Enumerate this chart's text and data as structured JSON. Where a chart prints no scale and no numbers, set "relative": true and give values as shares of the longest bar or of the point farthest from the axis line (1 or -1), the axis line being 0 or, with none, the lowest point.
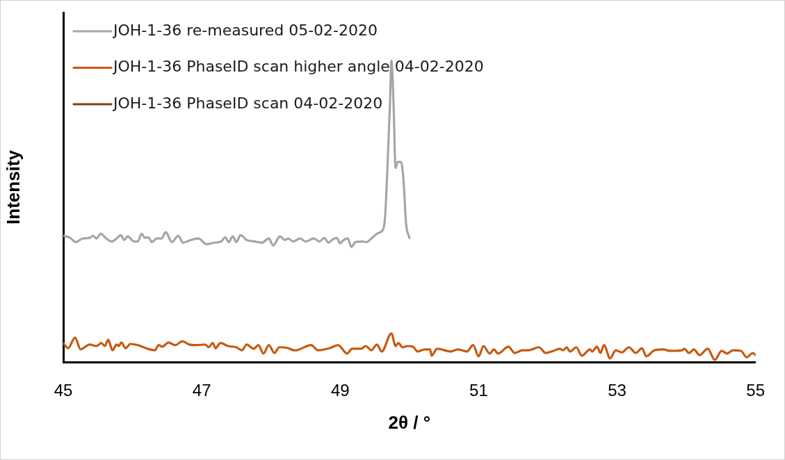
{
  "chart_data": {
    "type": "line",
    "relative": true,
    "xlabel": "2θ / °",
    "ylabel": "Intensity",
    "xlim": [
      45,
      55
    ],
    "xticks": [
      45,
      47,
      49,
      51,
      53,
      55
    ],
    "legend": "top left",
    "marker": "none",
    "line_style": "solid",
    "grid": false,
    "series": [
      {
        "name": "JOH-1-36 re-measured 05-02-2020",
        "color": "#a5a5a5",
        "x": [
          45,
          45.1,
          45.18,
          45.28,
          45.38,
          45.43,
          45.48,
          45.54,
          45.62,
          45.7,
          45.77,
          45.83,
          45.88,
          45.93,
          46.02,
          46.08,
          46.13,
          46.18,
          46.23,
          46.28,
          46.35,
          46.42,
          46.48,
          46.57,
          46.66,
          46.73,
          46.82,
          46.95,
          47.07,
          47.18,
          47.28,
          47.34,
          47.39,
          47.45,
          47.5,
          47.56,
          47.65,
          47.77,
          47.87,
          47.97,
          48.03,
          48.13,
          48.2,
          48.25,
          48.32,
          48.42,
          48.5,
          48.62,
          48.7,
          48.77,
          48.83,
          48.88,
          48.95,
          49,
          49.04,
          49.11,
          49.16,
          49.22,
          49.32,
          49.38,
          49.45,
          49.55,
          49.62,
          49.65,
          49.68,
          49.72,
          49.74,
          49.77,
          49.8,
          49.83,
          49.88,
          49.92,
          49.95,
          50
        ],
        "values": [
          0.419,
          0.412,
          0.398,
          0.41,
          0.412,
          0.419,
          0.41,
          0.426,
          0.41,
          0.4,
          0.41,
          0.421,
          0.405,
          0.417,
          0.4,
          0.4,
          0.426,
          0.412,
          0.414,
          0.398,
          0.41,
          0.41,
          0.431,
          0.398,
          0.419,
          0.396,
          0.403,
          0.41,
          0.391,
          0.396,
          0.4,
          0.414,
          0.398,
          0.417,
          0.398,
          0.421,
          0.405,
          0.4,
          0.396,
          0.41,
          0.387,
          0.417,
          0.405,
          0.41,
          0.4,
          0.41,
          0.4,
          0.41,
          0.4,
          0.412,
          0.396,
          0.405,
          0.412,
          0.394,
          0.403,
          0.41,
          0.382,
          0.398,
          0.4,
          0.398,
          0.41,
          0.428,
          0.44,
          0.486,
          0.632,
          0.863,
          1,
          0.863,
          0.644,
          0.664,
          0.664,
          0.586,
          0.463,
          0.412
        ]
      },
      {
        "name": "JOH-1-36 PhaseID scan higher angle 04-02-2020",
        "color": "#c55a11",
        "x": [
          45,
          45.07,
          45.17,
          45.25,
          45.38,
          45.48,
          45.55,
          45.6,
          45.65,
          45.71,
          45.77,
          45.8,
          45.84,
          45.9,
          45.97,
          46.08,
          46.22,
          46.32,
          46.38,
          46.43,
          46.52,
          46.62,
          46.72,
          46.82,
          46.93,
          47.05,
          47.1,
          47.16,
          47.2,
          47.27,
          47.38,
          47.5,
          47.58,
          47.65,
          47.75,
          47.82,
          47.89,
          47.97,
          48.05,
          48.12,
          48.25,
          48.33,
          48.37,
          48.43,
          48.58,
          48.68,
          48.85,
          48.97,
          49.1,
          49.17,
          49.3,
          49.37,
          49.45,
          49.53,
          49.6,
          49.74,
          49.8,
          49.84,
          49.9,
          49.97,
          50.05,
          50.12,
          50.22,
          50.3,
          50.32,
          50.4,
          50.6,
          50.7,
          50.83,
          50.92,
          51,
          51.07,
          51.16,
          51.22,
          51.28,
          51.43,
          51.52,
          51.63,
          51.72,
          51.87,
          51.97,
          52.08,
          52.17,
          52.22,
          52.27,
          52.32,
          52.41,
          52.49,
          52.61,
          52.64,
          52.71,
          52.76,
          52.81,
          52.9,
          52.98,
          53.07,
          53.17,
          53.27,
          53.36,
          53.42,
          53.54,
          53.67,
          53.76,
          53.94,
          53.97,
          54.04,
          54.11,
          54.19,
          54.31,
          54.41,
          54.51,
          54.59,
          54.67,
          54.79,
          54.87,
          54.96,
          55
        ],
        "values": [
          0.063,
          0.046,
          0.081,
          0.042,
          0.058,
          0.053,
          0.063,
          0.053,
          0.074,
          0.039,
          0.058,
          0.053,
          0.065,
          0.046,
          0.06,
          0.056,
          0.044,
          0.039,
          0.056,
          0.051,
          0.065,
          0.056,
          0.069,
          0.058,
          0.056,
          0.058,
          0.049,
          0.063,
          0.046,
          0.063,
          0.053,
          0.049,
          0.039,
          0.058,
          0.044,
          0.056,
          0.028,
          0.056,
          0.03,
          0.049,
          0.046,
          0.039,
          0.039,
          0.044,
          0.056,
          0.039,
          0.046,
          0.056,
          0.028,
          0.044,
          0.044,
          0.053,
          0.039,
          0.058,
          0.035,
          0.095,
          0.053,
          0.063,
          0.049,
          0.053,
          0.051,
          0.035,
          0.042,
          0.042,
          0.021,
          0.044,
          0.035,
          0.042,
          0.035,
          0.056,
          0.019,
          0.053,
          0.028,
          0.042,
          0.028,
          0.051,
          0.03,
          0.039,
          0.039,
          0.049,
          0.03,
          0.037,
          0.044,
          0.039,
          0.049,
          0.035,
          0.049,
          0.021,
          0.042,
          0.035,
          0.051,
          0.03,
          0.056,
          0.012,
          0.039,
          0.032,
          0.049,
          0.03,
          0.046,
          0.019,
          0.039,
          0.042,
          0.037,
          0.039,
          0.044,
          0.03,
          0.042,
          0.023,
          0.044,
          0.007,
          0.037,
          0.028,
          0.039,
          0.037,
          0.016,
          0.03,
          0.023
        ]
      },
      {
        "name": "JOH-1-36 PhaseID scan 04-02-2020",
        "color": "#843c0c"
      }
    ]
  }
}
